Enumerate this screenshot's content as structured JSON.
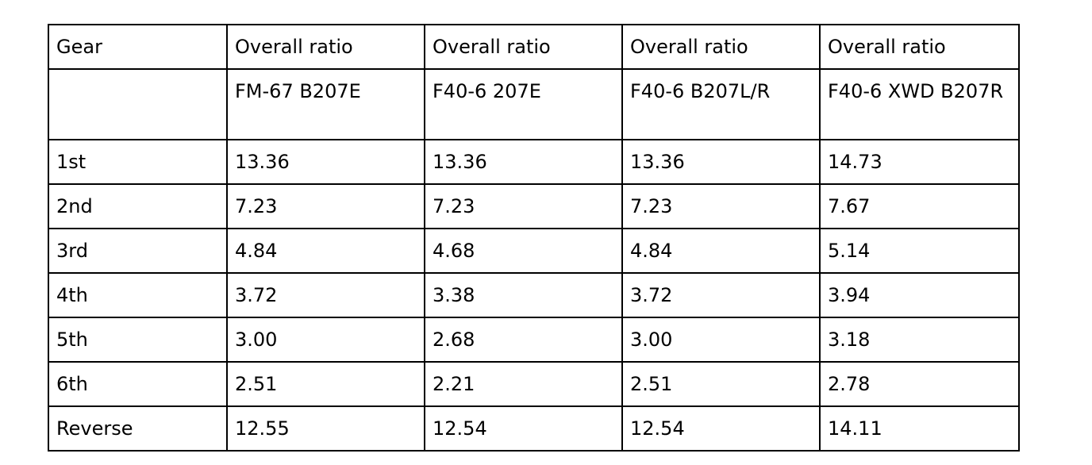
{
  "table": {
    "header": [
      "Gear",
      "Overall ratio",
      "Overall ratio",
      "Overall ratio",
      "Overall ratio"
    ],
    "models": [
      "FM-67 B207E",
      "F40-6 207E",
      "F40-6 B207L/R",
      "F40-6 XWD B207R"
    ],
    "rows": [
      [
        "1st",
        "13.36",
        "13.36",
        "13.36",
        "14.73"
      ],
      [
        "2nd",
        "7.23",
        "7.23",
        "7.23",
        "7.67"
      ],
      [
        "3rd",
        "4.84",
        "4.68",
        "4.84",
        "5.14"
      ],
      [
        "4th",
        "3.72",
        "3.38",
        "3.72",
        "3.94"
      ],
      [
        "5th",
        "3.00",
        "2.68",
        "3.00",
        "3.18"
      ],
      [
        "6th",
        "2.51",
        "2.21",
        "2.51",
        "2.78"
      ],
      [
        "Reverse",
        "12.55",
        "12.54",
        "12.54",
        "14.11"
      ]
    ]
  }
}
